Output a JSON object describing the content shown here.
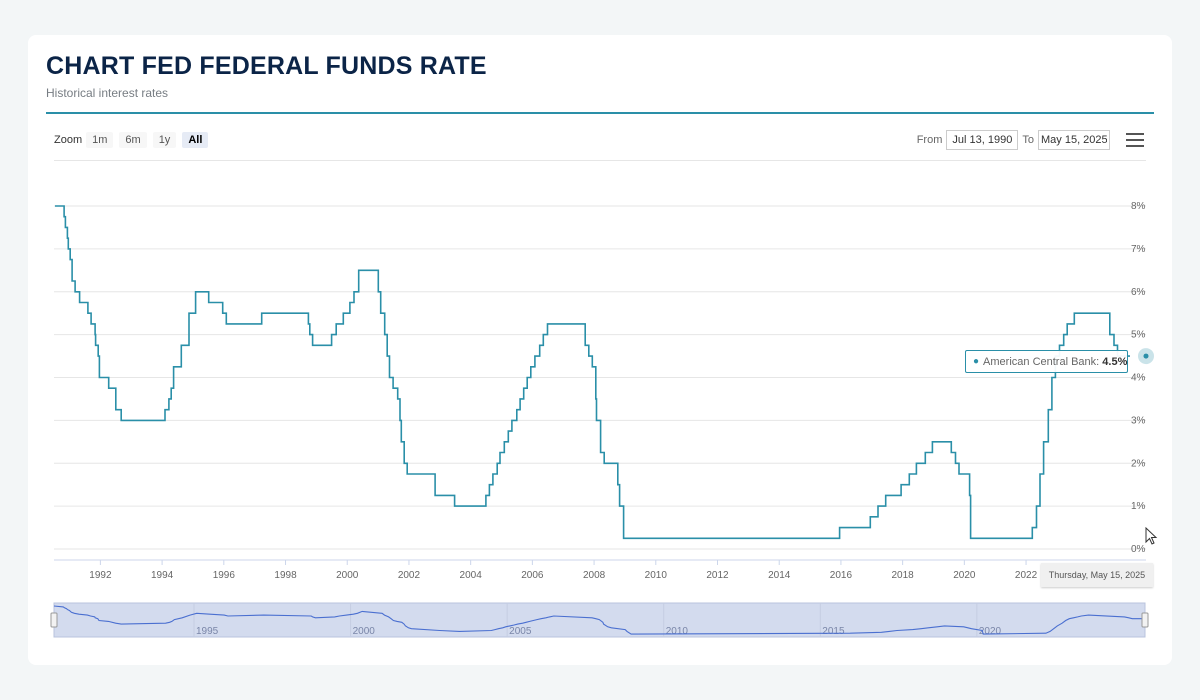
{
  "header": {
    "title": "CHART FED FEDERAL FUNDS RATE",
    "subtitle": "Historical interest rates"
  },
  "toolbar": {
    "zoom_label": "Zoom",
    "zoom_buttons": [
      "1m",
      "6m",
      "1y",
      "All"
    ],
    "active_zoom": "All",
    "from_label": "From",
    "from_value": "Jul 13, 1990",
    "to_label": "To",
    "to_value": "May 15, 2025",
    "menu_icon": "hamburger-menu-icon"
  },
  "tooltip": {
    "series": "American Central Bank:",
    "value": "4.5%"
  },
  "crosshair_date": "Thursday, May 15, 2025",
  "colors": {
    "line": "#2a8fa8",
    "navigator_line": "#4a6fd0",
    "navigator_fill": "#d3dbee",
    "title": "#0b2447"
  },
  "chart_data": {
    "type": "line",
    "step": true,
    "x_axis": {
      "type": "date",
      "min": "1990-07-13",
      "max": "2025-05-15",
      "tick_labels": [
        "1992",
        "1994",
        "1996",
        "1998",
        "2000",
        "2002",
        "2004",
        "2006",
        "2008",
        "2010",
        "2012",
        "2014",
        "2016",
        "2018",
        "2020",
        "2022"
      ]
    },
    "y_axis": {
      "min": 0,
      "max": 8,
      "position": "right",
      "tick_labels": [
        "0%",
        "1%",
        "2%",
        "3%",
        "4%",
        "5%",
        "6%",
        "7%",
        "8%"
      ]
    },
    "grid": true,
    "navigator": {
      "tick_labels": [
        "1995",
        "2000",
        "2005",
        "2010",
        "2015",
        "2020"
      ]
    },
    "series": [
      {
        "name": "American Central Bank",
        "points": [
          [
            "1990-07-13",
            8.0
          ],
          [
            "1990-10-29",
            7.75
          ],
          [
            "1990-11-13",
            7.5
          ],
          [
            "1990-12-07",
            7.25
          ],
          [
            "1990-12-18",
            7.0
          ],
          [
            "1991-01-09",
            6.75
          ],
          [
            "1991-02-01",
            6.25
          ],
          [
            "1991-03-08",
            6.0
          ],
          [
            "1991-04-30",
            5.75
          ],
          [
            "1991-08-06",
            5.5
          ],
          [
            "1991-09-13",
            5.25
          ],
          [
            "1991-10-31",
            5.0
          ],
          [
            "1991-11-06",
            4.75
          ],
          [
            "1991-12-06",
            4.5
          ],
          [
            "1991-12-20",
            4.0
          ],
          [
            "1992-04-09",
            3.75
          ],
          [
            "1992-07-02",
            3.25
          ],
          [
            "1992-09-04",
            3.0
          ],
          [
            "1994-02-04",
            3.25
          ],
          [
            "1994-03-22",
            3.5
          ],
          [
            "1994-04-18",
            3.75
          ],
          [
            "1994-05-17",
            4.25
          ],
          [
            "1994-08-16",
            4.75
          ],
          [
            "1994-11-15",
            5.5
          ],
          [
            "1995-02-01",
            6.0
          ],
          [
            "1995-07-06",
            5.75
          ],
          [
            "1995-12-19",
            5.5
          ],
          [
            "1996-01-31",
            5.25
          ],
          [
            "1997-03-25",
            5.5
          ],
          [
            "1998-09-29",
            5.25
          ],
          [
            "1998-10-15",
            5.0
          ],
          [
            "1998-11-17",
            4.75
          ],
          [
            "1999-06-30",
            5.0
          ],
          [
            "1999-08-24",
            5.25
          ],
          [
            "1999-11-16",
            5.5
          ],
          [
            "2000-02-02",
            5.75
          ],
          [
            "2000-03-21",
            6.0
          ],
          [
            "2000-05-16",
            6.5
          ],
          [
            "2001-01-03",
            6.0
          ],
          [
            "2001-01-31",
            5.5
          ],
          [
            "2001-03-20",
            5.0
          ],
          [
            "2001-04-18",
            4.5
          ],
          [
            "2001-05-15",
            4.0
          ],
          [
            "2001-06-27",
            3.75
          ],
          [
            "2001-08-21",
            3.5
          ],
          [
            "2001-09-17",
            3.0
          ],
          [
            "2001-10-02",
            2.5
          ],
          [
            "2001-11-06",
            2.0
          ],
          [
            "2001-12-11",
            1.75
          ],
          [
            "2002-11-06",
            1.25
          ],
          [
            "2003-06-25",
            1.0
          ],
          [
            "2004-06-30",
            1.25
          ],
          [
            "2004-08-10",
            1.5
          ],
          [
            "2004-09-21",
            1.75
          ],
          [
            "2004-11-10",
            2.0
          ],
          [
            "2004-12-14",
            2.25
          ],
          [
            "2005-02-02",
            2.5
          ],
          [
            "2005-03-22",
            2.75
          ],
          [
            "2005-05-03",
            3.0
          ],
          [
            "2005-06-30",
            3.25
          ],
          [
            "2005-08-09",
            3.5
          ],
          [
            "2005-09-20",
            3.75
          ],
          [
            "2005-11-01",
            4.0
          ],
          [
            "2005-12-13",
            4.25
          ],
          [
            "2006-01-31",
            4.5
          ],
          [
            "2006-03-28",
            4.75
          ],
          [
            "2006-05-10",
            5.0
          ],
          [
            "2006-06-29",
            5.25
          ],
          [
            "2007-09-18",
            4.75
          ],
          [
            "2007-10-31",
            4.5
          ],
          [
            "2007-12-11",
            4.25
          ],
          [
            "2008-01-22",
            3.5
          ],
          [
            "2008-01-30",
            3.0
          ],
          [
            "2008-03-18",
            2.25
          ],
          [
            "2008-04-30",
            2.0
          ],
          [
            "2008-10-08",
            1.5
          ],
          [
            "2008-10-29",
            1.0
          ],
          [
            "2008-12-16",
            0.25
          ],
          [
            "2015-12-16",
            0.5
          ],
          [
            "2016-12-14",
            0.75
          ],
          [
            "2017-03-15",
            1.0
          ],
          [
            "2017-06-14",
            1.25
          ],
          [
            "2017-12-13",
            1.5
          ],
          [
            "2018-03-21",
            1.75
          ],
          [
            "2018-06-13",
            2.0
          ],
          [
            "2018-09-26",
            2.25
          ],
          [
            "2018-12-19",
            2.5
          ],
          [
            "2019-07-31",
            2.25
          ],
          [
            "2019-09-18",
            2.0
          ],
          [
            "2019-10-30",
            1.75
          ],
          [
            "2020-03-03",
            1.25
          ],
          [
            "2020-03-15",
            0.25
          ],
          [
            "2022-03-16",
            0.5
          ],
          [
            "2022-05-04",
            1.0
          ],
          [
            "2022-06-15",
            1.75
          ],
          [
            "2022-07-27",
            2.5
          ],
          [
            "2022-09-21",
            3.25
          ],
          [
            "2022-11-02",
            4.0
          ],
          [
            "2022-12-14",
            4.5
          ],
          [
            "2023-02-01",
            4.75
          ],
          [
            "2023-03-22",
            5.0
          ],
          [
            "2023-05-03",
            5.25
          ],
          [
            "2023-07-26",
            5.5
          ],
          [
            "2024-09-18",
            5.0
          ],
          [
            "2024-11-07",
            4.75
          ],
          [
            "2024-12-18",
            4.5
          ],
          [
            "2025-05-15",
            4.5
          ]
        ]
      }
    ]
  }
}
